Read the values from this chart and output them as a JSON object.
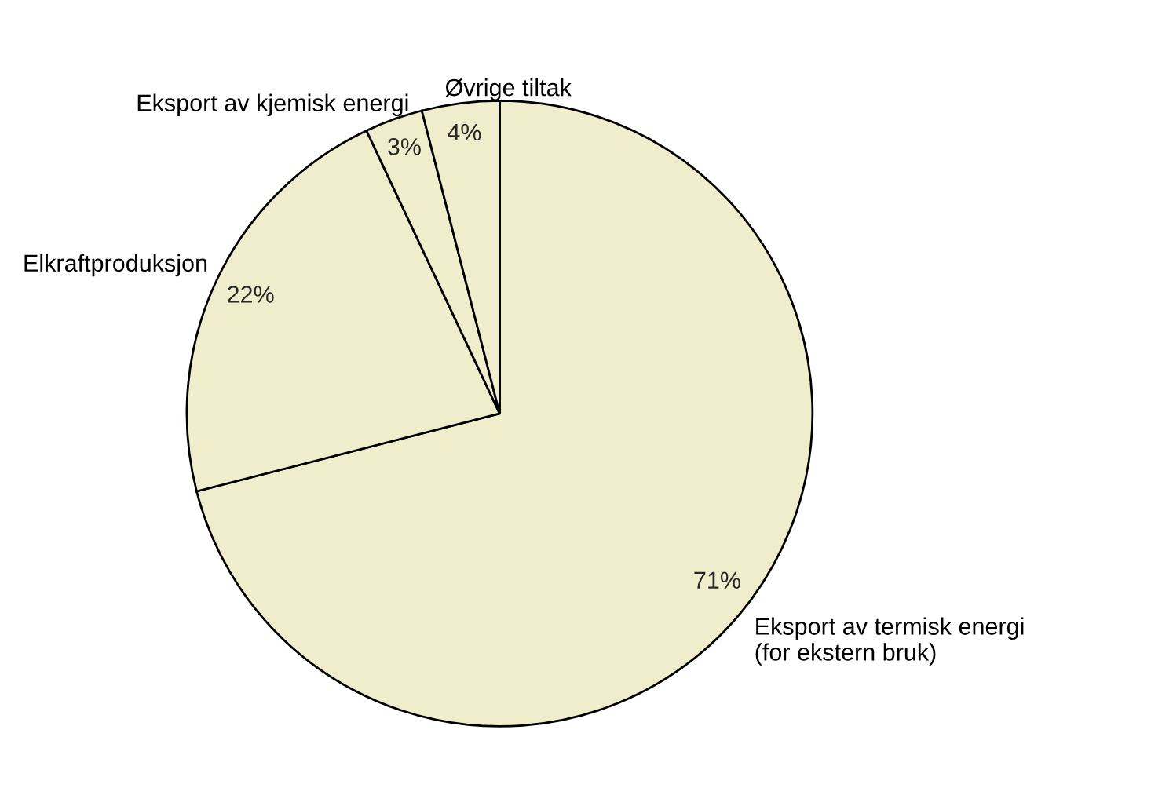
{
  "chart_data": {
    "type": "pie",
    "categories": [
      "Eksport av termisk energi\n(for ekstern bruk)",
      "Elkraftproduksjon",
      "Eksport av kjemisk energi",
      "Øvrige tiltak"
    ],
    "values": [
      71,
      22,
      3,
      4
    ],
    "value_labels": [
      "71%",
      "22%",
      "3%",
      "4%"
    ],
    "colors": [
      "#efedcc",
      "#efedcc",
      "#efedcc",
      "#efedcc"
    ],
    "legend": false
  }
}
